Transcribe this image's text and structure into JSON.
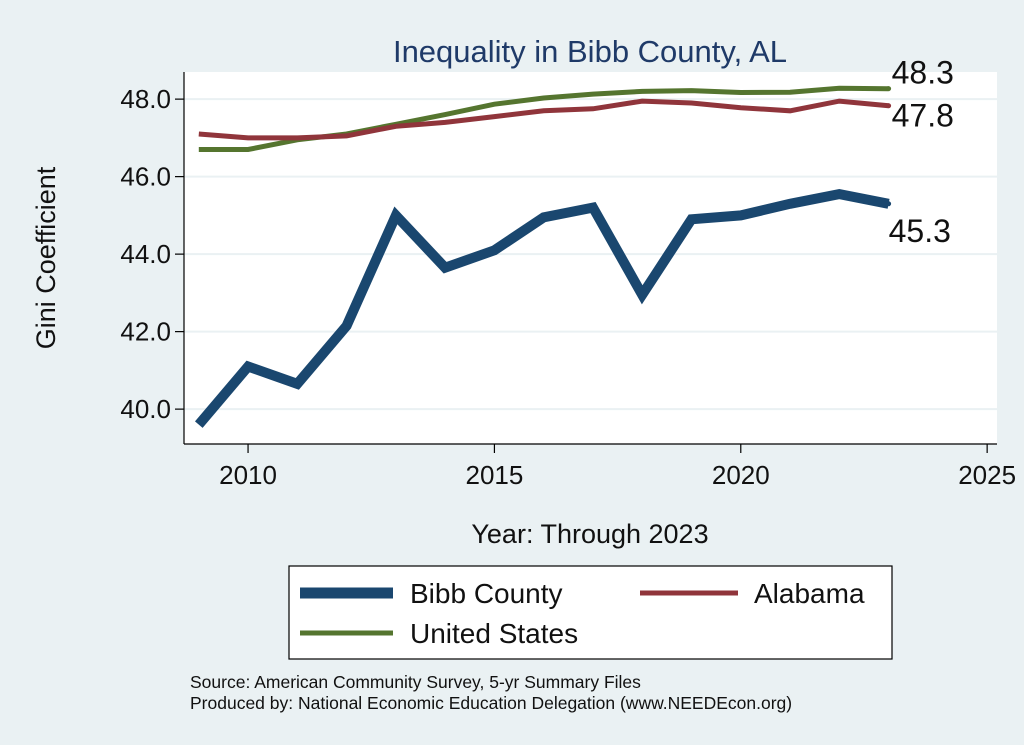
{
  "chart_data": {
    "type": "line",
    "title": "Inequality in Bibb County, AL",
    "xlabel": "Year: Through 2023",
    "ylabel": "Gini Coefficient",
    "xlim": [
      2008.7,
      2025.2
    ],
    "ylim": [
      39.1,
      48.7
    ],
    "xticks": [
      2010,
      2015,
      2020,
      2025
    ],
    "xtick_labels": [
      "2010",
      "2015",
      "2020",
      "2025"
    ],
    "yticks": [
      40,
      42,
      44,
      46,
      48
    ],
    "ytick_labels": [
      "40.0",
      "42.0",
      "44.0",
      "46.0",
      "48.0"
    ],
    "x": [
      2009,
      2010,
      2011,
      2012,
      2013,
      2014,
      2015,
      2016,
      2017,
      2018,
      2019,
      2020,
      2021,
      2022,
      2023
    ],
    "series": [
      {
        "name": "Bibb County",
        "color": "#1a476f",
        "values": [
          39.6,
          41.1,
          40.65,
          42.15,
          45.0,
          43.65,
          44.1,
          44.95,
          45.2,
          42.95,
          44.9,
          45.0,
          45.3,
          45.55,
          45.3
        ],
        "end_label": "45.3"
      },
      {
        "name": "Alabama",
        "color": "#90353b",
        "values": [
          47.1,
          47.0,
          47.0,
          47.05,
          47.3,
          47.4,
          47.55,
          47.7,
          47.75,
          47.95,
          47.9,
          47.78,
          47.7,
          47.95,
          47.83
        ],
        "end_label": "47.8"
      },
      {
        "name": "United States",
        "color": "#55752f",
        "values": [
          46.7,
          46.7,
          46.95,
          47.1,
          47.35,
          47.6,
          47.87,
          48.03,
          48.13,
          48.2,
          48.22,
          48.17,
          48.18,
          48.28,
          48.27
        ],
        "end_label": "48.3"
      }
    ],
    "legend": {
      "position": "bottom",
      "entries": [
        "Bibb County",
        "Alabama",
        "United States"
      ]
    },
    "grid": true
  },
  "source_lines": [
    "Source: American Community Survey, 5-yr Summary Files",
    "Produced by: National Economic Education Delegation (www.NEEDEcon.org)"
  ]
}
